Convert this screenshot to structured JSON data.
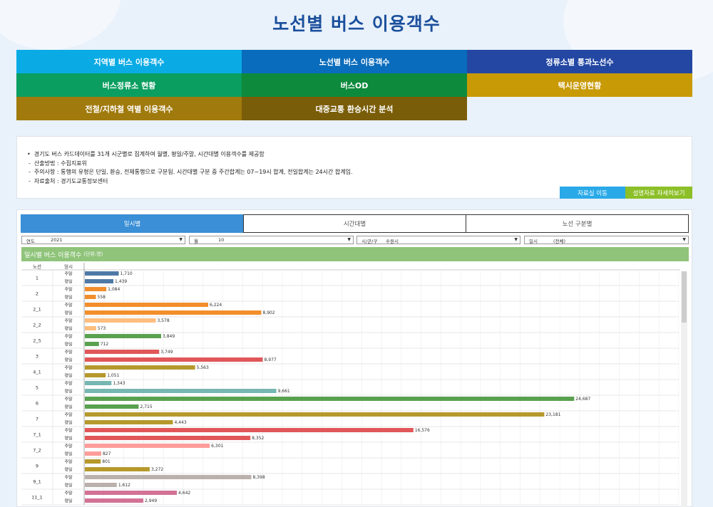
{
  "page": {
    "title": "노선별 버스 이용객수"
  },
  "nav": {
    "rows": [
      [
        {
          "label": "지역별 버스 이용객수",
          "color": "#0aabe5"
        },
        {
          "label": "노선별 버스 이용객수",
          "color": "#0a6cbc"
        },
        {
          "label": "정류소별 통과노선수",
          "color": "#2347a3"
        }
      ],
      [
        {
          "label": "버스정류소 현황",
          "color": "#0a9e60"
        },
        {
          "label": "버스OD",
          "color": "#0e8a3c"
        },
        {
          "label": "택시운영현황",
          "color": "#c89a05"
        }
      ],
      [
        {
          "label": "전철/지하철 역별 이용객수",
          "color": "#a07a0c"
        },
        {
          "label": "대중교통 환승시간 분석",
          "color": "#7a5d08"
        }
      ]
    ]
  },
  "info": {
    "lines": [
      {
        "bullet": "•",
        "text": "경기도 버스 카드데이터를 31개 시군별로 집계하여 월별, 평일/주말, 시간대별 이용객수를 제공함"
      },
      {
        "bullet": "-",
        "text": "산출방법 : 수집지표위"
      },
      {
        "bullet": "-",
        "text": "주의사항 : 통행의 유형은 단일, 환승, 전체통행으로 구분됨. 시간대별 구분 중 주간합계는 07~19시 합계, 전일합계는 24시간 합계임."
      },
      {
        "bullet": "-",
        "text": "자료출처 : 경기도교통정보센터"
      }
    ],
    "btn_data_room": "자료실 이동",
    "btn_detail": "설명자료 자세히보기",
    "btn_data_room_color": "#29a9e8",
    "btn_detail_color": "#8cbf28"
  },
  "tabs": [
    "일시별",
    "시간대별",
    "노선 구분별"
  ],
  "filters": [
    {
      "label": "연도",
      "value": "2021"
    },
    {
      "label": "월",
      "value": "10"
    },
    {
      "label": "시/군/구",
      "value": "수원시"
    },
    {
      "label": "일시",
      "value": "(전체)"
    }
  ],
  "chart_header": {
    "title": "일시별 버스 이용객수",
    "unit": "(단위:명)"
  },
  "chart_data": {
    "type": "bar",
    "orientation": "horizontal",
    "col_headers": [
      "노선",
      "일시"
    ],
    "xlim": [
      0,
      30000
    ],
    "grid": true,
    "groups": [
      {
        "route": "1",
        "color": "#4e79a7",
        "bars": [
          {
            "day": "주말",
            "value": 1710
          },
          {
            "day": "평일",
            "value": 1439
          }
        ]
      },
      {
        "route": "2",
        "color": "#f28e2b",
        "bars": [
          {
            "day": "주말",
            "value": 1084
          },
          {
            "day": "평일",
            "value": 558
          }
        ]
      },
      {
        "route": "2_1",
        "color": "#f28e2b",
        "bars": [
          {
            "day": "주말",
            "value": 6224
          },
          {
            "day": "평일",
            "value": 8902
          }
        ]
      },
      {
        "route": "2_2",
        "color": "#ffbe7d",
        "bars": [
          {
            "day": "주말",
            "value": 3578
          },
          {
            "day": "평일",
            "value": 573
          }
        ]
      },
      {
        "route": "2_5",
        "color": "#59a14f",
        "bars": [
          {
            "day": "주말",
            "value": 3849
          },
          {
            "day": "평일",
            "value": 712
          }
        ]
      },
      {
        "route": "3",
        "color": "#e15759",
        "bars": [
          {
            "day": "주말",
            "value": 3749
          },
          {
            "day": "평일",
            "value": 8977
          }
        ]
      },
      {
        "route": "4_1",
        "color": "#b6992d",
        "bars": [
          {
            "day": "주말",
            "value": 5563
          },
          {
            "day": "평일",
            "value": 1051
          }
        ]
      },
      {
        "route": "5",
        "color": "#76b7b2",
        "bars": [
          {
            "day": "주말",
            "value": 1343
          },
          {
            "day": "평일",
            "value": 9661
          }
        ]
      },
      {
        "route": "6",
        "color": "#59a14f",
        "bars": [
          {
            "day": "주말",
            "value": 24687
          },
          {
            "day": "평일",
            "value": 2715
          }
        ]
      },
      {
        "route": "7",
        "color": "#b6992d",
        "bars": [
          {
            "day": "주말",
            "value": 23181
          },
          {
            "day": "평일",
            "value": 4443
          }
        ]
      },
      {
        "route": "7_1",
        "color": "#e15759",
        "bars": [
          {
            "day": "주말",
            "value": 16576
          },
          {
            "day": "평일",
            "value": 8352
          }
        ]
      },
      {
        "route": "7_2",
        "color": "#ff9d9a",
        "bars": [
          {
            "day": "주말",
            "value": 6301
          },
          {
            "day": "평일",
            "value": 827
          }
        ]
      },
      {
        "route": "9",
        "color": "#b6992d",
        "bars": [
          {
            "day": "주말",
            "value": 801
          },
          {
            "day": "평일",
            "value": 3272
          }
        ]
      },
      {
        "route": "9_1",
        "color": "#bab0ac",
        "bars": [
          {
            "day": "주말",
            "value": 8398
          },
          {
            "day": "평일",
            "value": 1612
          }
        ]
      },
      {
        "route": "11_1",
        "color": "#d37295",
        "bars": [
          {
            "day": "주말",
            "value": 4642
          },
          {
            "day": "평일",
            "value": 2949
          }
        ]
      }
    ]
  }
}
